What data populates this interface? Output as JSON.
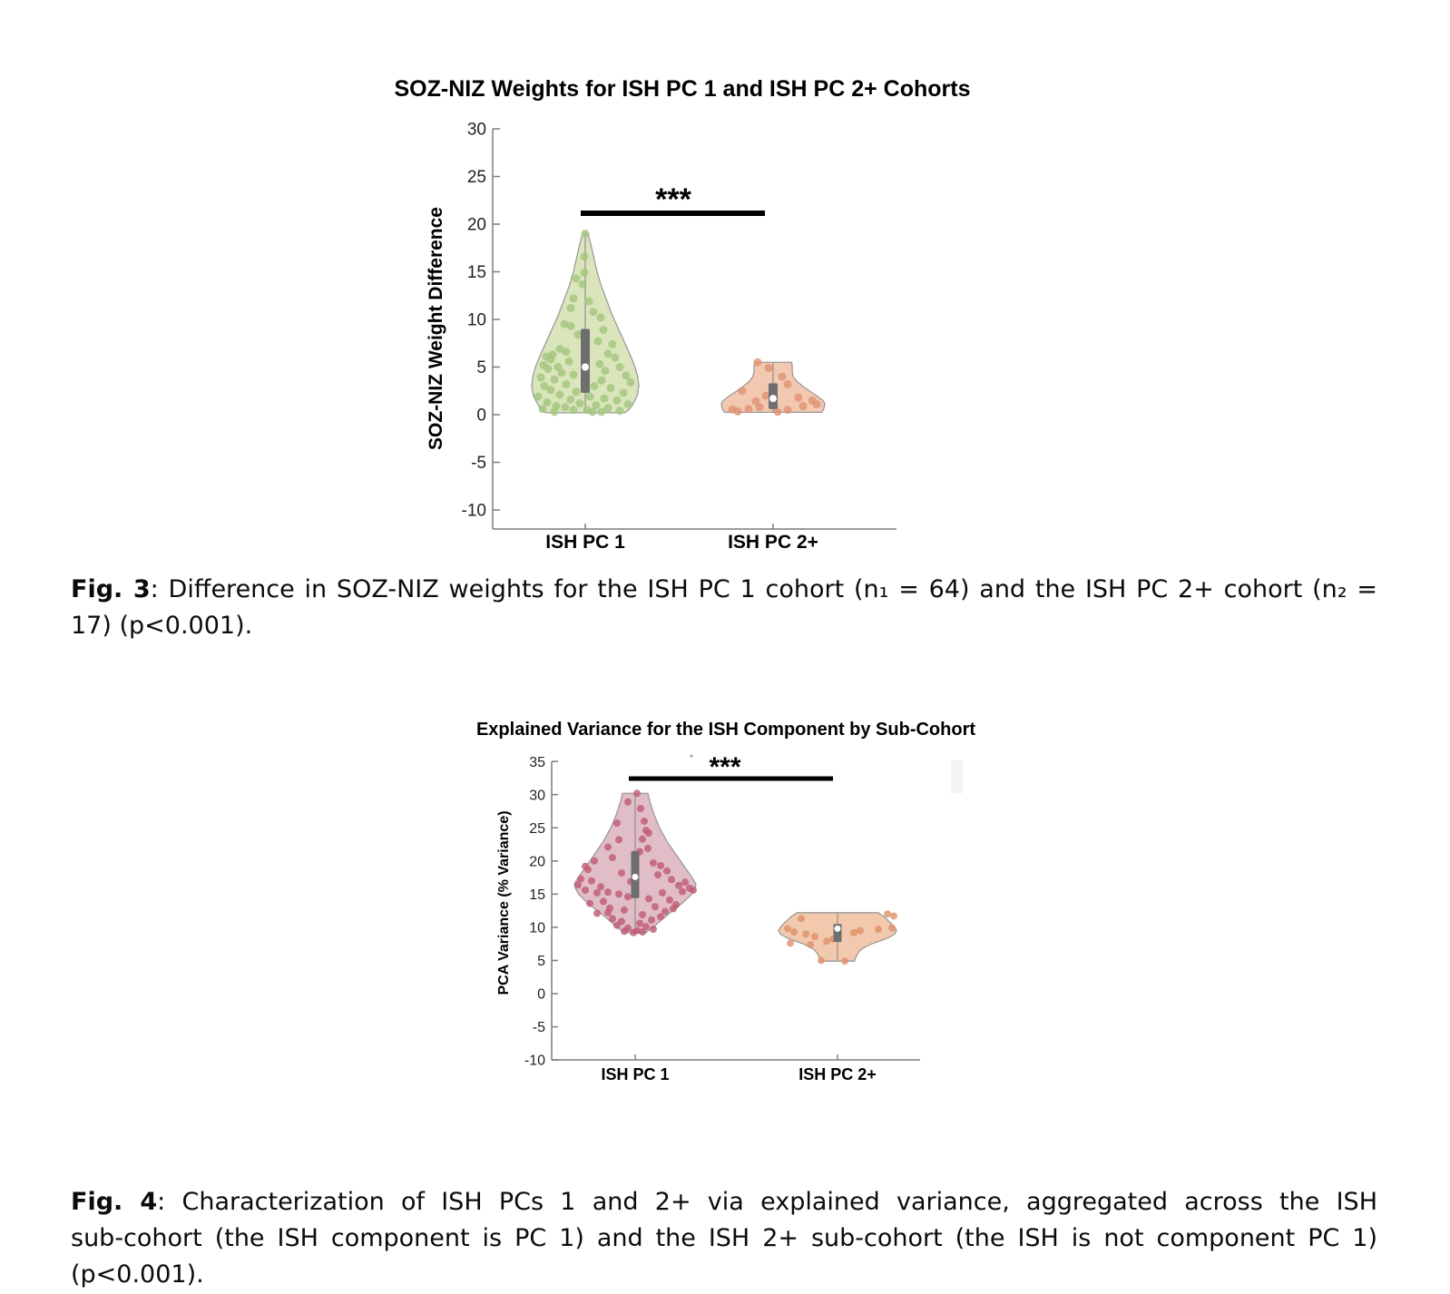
{
  "page": {
    "background": "#ffffff"
  },
  "figures": {
    "fig3": {
      "caption": {
        "prefix": "Fig. 3",
        "line1": ": Difference in SOZ-NIZ weights for the ISH PC 1 cohort (n₁ = 64) and the ISH PC 2+ cohort (n₂ =",
        "line2": "17) (p<0.001)."
      }
    },
    "fig4": {
      "caption": {
        "prefix": "Fig. 4",
        "line1": ": Characterization of ISH PCs 1 and 2+ via explained variance, aggregated across the ISH",
        "line2": "sub-cohort (the ISH component is PC 1) and the ISH 2+ sub-cohort (the ISH is not component PC 1)",
        "line3": "(p<0.001)."
      }
    }
  },
  "chart_data": [
    {
      "id": "fig3",
      "type": "violin",
      "title": "SOZ-NIZ Weights for ISH PC 1 and ISH PC 2+ Cohorts",
      "ylabel": "SOZ-NIZ Weight Difference",
      "xlabel": "",
      "ylim": [
        -12.5,
        31
      ],
      "yticks": [
        30,
        25,
        20,
        15,
        10,
        5,
        0,
        -5,
        -10
      ],
      "categories": [
        "ISH PC 1",
        "ISH PC 2+"
      ],
      "grid": false,
      "significance": {
        "label": "***",
        "between": [
          "ISH PC 1",
          "ISH PC 2+"
        ],
        "p": "p<0.001"
      },
      "series": [
        {
          "name": "ISH PC 1",
          "n": 64,
          "fill": "#dbe5bc",
          "point_color": "#a3c57c",
          "box": {
            "q1": 2.3,
            "median": 5.0,
            "q3": 9.0
          },
          "whisker": [
            0.25,
            19.0
          ],
          "profile": [
            [
              19.0,
              0.05
            ],
            [
              18.0,
              0.1
            ],
            [
              16.5,
              0.16
            ],
            [
              15.0,
              0.22
            ],
            [
              13.5,
              0.3
            ],
            [
              12.0,
              0.4
            ],
            [
              10.5,
              0.5
            ],
            [
              9.0,
              0.62
            ],
            [
              7.5,
              0.74
            ],
            [
              6.0,
              0.86
            ],
            [
              5.0,
              0.93
            ],
            [
              4.0,
              0.98
            ],
            [
              3.0,
              1.0
            ],
            [
              2.0,
              0.97
            ],
            [
              1.0,
              0.88
            ],
            [
              0.5,
              0.81
            ],
            [
              0.2,
              0.74
            ]
          ],
          "points": [
            [
              0,
              19.0
            ],
            [
              -1,
              16.6
            ],
            [
              -1,
              14.9
            ],
            [
              -10,
              14.3
            ],
            [
              -3,
              13.7
            ],
            [
              -13,
              12.2
            ],
            [
              4,
              11.9
            ],
            [
              -16,
              11.2
            ],
            [
              9,
              10.8
            ],
            [
              17,
              10.2
            ],
            [
              -23,
              9.5
            ],
            [
              -16,
              9.3
            ],
            [
              20,
              8.9
            ],
            [
              -8,
              8.4
            ],
            [
              14,
              7.7
            ],
            [
              30,
              7.4
            ],
            [
              -28,
              6.9
            ],
            [
              -21,
              6.6
            ],
            [
              -36,
              6.3
            ],
            [
              25,
              6.4
            ],
            [
              33,
              6.0
            ],
            [
              -43,
              6.1
            ],
            [
              -38,
              5.8
            ],
            [
              -18,
              5.6
            ],
            [
              -46,
              5.2
            ],
            [
              -30,
              5.0
            ],
            [
              -41,
              4.8
            ],
            [
              16,
              5.3
            ],
            [
              38,
              5.0
            ],
            [
              22,
              4.6
            ],
            [
              -26,
              4.4
            ],
            [
              -13,
              4.2
            ],
            [
              45,
              4.1
            ],
            [
              -49,
              3.9
            ],
            [
              -34,
              3.7
            ],
            [
              18,
              3.6
            ],
            [
              50,
              3.4
            ],
            [
              -21,
              3.2
            ],
            [
              -45,
              3.0
            ],
            [
              10,
              3.0
            ],
            [
              28,
              2.8
            ],
            [
              -38,
              2.6
            ],
            [
              -10,
              2.4
            ],
            [
              42,
              2.3
            ],
            [
              -28,
              2.1
            ],
            [
              -52,
              1.9
            ],
            [
              5,
              1.9
            ],
            [
              21,
              1.7
            ],
            [
              -16,
              1.6
            ],
            [
              35,
              1.5
            ],
            [
              -42,
              1.3
            ],
            [
              -6,
              1.2
            ],
            [
              47,
              1.1
            ],
            [
              12,
              1.0
            ],
            [
              -32,
              0.9
            ],
            [
              -22,
              0.8
            ],
            [
              25,
              0.7
            ],
            [
              -47,
              0.6
            ],
            [
              2,
              0.5
            ],
            [
              -13,
              0.5
            ],
            [
              38,
              0.4
            ],
            [
              18,
              0.3
            ],
            [
              -34,
              0.3
            ],
            [
              8,
              0.3
            ]
          ]
        },
        {
          "name": "ISH PC 2+",
          "n": 17,
          "fill": "#f3c8b0",
          "point_color": "#dd9372",
          "box": {
            "q1": 0.6,
            "median": 1.7,
            "q3": 3.3
          },
          "whisker": [
            0.25,
            5.5
          ],
          "profile": [
            [
              5.5,
              0.36
            ],
            [
              5.0,
              0.37
            ],
            [
              4.5,
              0.37
            ],
            [
              4.0,
              0.39
            ],
            [
              3.5,
              0.46
            ],
            [
              3.0,
              0.57
            ],
            [
              2.5,
              0.7
            ],
            [
              2.0,
              0.84
            ],
            [
              1.5,
              0.96
            ],
            [
              1.2,
              1.0
            ],
            [
              0.8,
              0.99
            ],
            [
              0.5,
              0.97
            ],
            [
              0.25,
              0.94
            ]
          ],
          "points": [
            [
              -17,
              5.5
            ],
            [
              -5,
              4.9
            ],
            [
              10,
              4.0
            ],
            [
              16,
              3.2
            ],
            [
              -34,
              2.5
            ],
            [
              -8,
              2.0
            ],
            [
              28,
              1.8
            ],
            [
              43,
              1.5
            ],
            [
              -19,
              1.4
            ],
            [
              48,
              1.1
            ],
            [
              33,
              0.9
            ],
            [
              -15,
              0.8
            ],
            [
              -27,
              0.6
            ],
            [
              -45,
              0.55
            ],
            [
              16,
              0.5
            ],
            [
              -39,
              0.35
            ],
            [
              5,
              0.3
            ]
          ]
        }
      ]
    },
    {
      "id": "fig4",
      "type": "violin",
      "title": "Explained Variance for the ISH Component by Sub-Cohort",
      "ylabel": "PCA Variance (% Variance)",
      "xlabel": "",
      "ylim": [
        -10,
        35
      ],
      "yticks": [
        35,
        30,
        25,
        20,
        15,
        10,
        5,
        0,
        -5,
        -10
      ],
      "categories": [
        "ISH PC 1",
        "ISH PC 2+"
      ],
      "grid": false,
      "significance": {
        "label": "***",
        "between": [
          "ISH PC 1",
          "ISH PC 2+"
        ],
        "p": "p<0.001"
      },
      "series": [
        {
          "name": "ISH PC 1",
          "n": 64,
          "fill": "#e0bdc7",
          "point_color": "#bf5a72",
          "box": {
            "q1": 14.4,
            "median": 17.6,
            "q3": 21.5
          },
          "whisker": [
            9.2,
            30.2
          ],
          "profile": [
            [
              30.2,
              0.21
            ],
            [
              29.0,
              0.24
            ],
            [
              27.0,
              0.31
            ],
            [
              25.0,
              0.4
            ],
            [
              23.0,
              0.52
            ],
            [
              21.0,
              0.67
            ],
            [
              19.0,
              0.82
            ],
            [
              18.0,
              0.9
            ],
            [
              17.0,
              0.97
            ],
            [
              16.5,
              1.0
            ],
            [
              16.0,
              0.99
            ],
            [
              15.0,
              0.93
            ],
            [
              14.0,
              0.82
            ],
            [
              13.0,
              0.69
            ],
            [
              12.0,
              0.55
            ],
            [
              11.0,
              0.42
            ],
            [
              10.0,
              0.3
            ],
            [
              9.5,
              0.22
            ],
            [
              9.2,
              0.18
            ]
          ],
          "points": [
            [
              2,
              30.2
            ],
            [
              -8,
              28.9
            ],
            [
              6,
              27.9
            ],
            [
              10,
              26.0
            ],
            [
              -20,
              25.7
            ],
            [
              12,
              24.6
            ],
            [
              15,
              24.2
            ],
            [
              8,
              23.3
            ],
            [
              -18,
              23.2
            ],
            [
              -30,
              22.1
            ],
            [
              14,
              21.9
            ],
            [
              5,
              21.4
            ],
            [
              -25,
              20.5
            ],
            [
              -45,
              20.0
            ],
            [
              20,
              19.7
            ],
            [
              28,
              19.3
            ],
            [
              -55,
              19.2
            ],
            [
              -52,
              18.7
            ],
            [
              35,
              18.5
            ],
            [
              -15,
              18.2
            ],
            [
              25,
              17.9
            ],
            [
              -60,
              17.3
            ],
            [
              -48,
              17.0
            ],
            [
              40,
              17.2
            ],
            [
              55,
              16.8
            ],
            [
              -63,
              16.4
            ],
            [
              -5,
              16.9
            ],
            [
              -38,
              16.1
            ],
            [
              48,
              16.3
            ],
            [
              60,
              15.9
            ],
            [
              -55,
              15.6
            ],
            [
              -30,
              15.3
            ],
            [
              -42,
              15.2
            ],
            [
              -18,
              15.0
            ],
            [
              30,
              15.2
            ],
            [
              52,
              15.4
            ],
            [
              64,
              15.6
            ],
            [
              -8,
              14.6
            ],
            [
              15,
              14.3
            ],
            [
              38,
              14.1
            ],
            [
              -35,
              13.9
            ],
            [
              -50,
              13.6
            ],
            [
              45,
              13.4
            ],
            [
              22,
              13.1
            ],
            [
              -28,
              12.9
            ],
            [
              -12,
              12.6
            ],
            [
              33,
              12.4
            ],
            [
              -42,
              12.1
            ],
            [
              42,
              12.8
            ],
            [
              -30,
              12.2
            ],
            [
              8,
              11.9
            ],
            [
              28,
              11.6
            ],
            [
              -25,
              11.3
            ],
            [
              18,
              11.1
            ],
            [
              -15,
              10.9
            ],
            [
              5,
              10.6
            ],
            [
              -20,
              10.3
            ],
            [
              12,
              10.1
            ],
            [
              -8,
              9.9
            ],
            [
              20,
              9.7
            ],
            [
              2,
              9.5
            ],
            [
              -12,
              9.4
            ],
            [
              8,
              9.3
            ],
            [
              -2,
              9.2
            ]
          ]
        },
        {
          "name": "ISH PC 2+",
          "n": 17,
          "fill": "#f2c9ad",
          "point_color": "#dd9168",
          "box": {
            "q1": 7.8,
            "median": 9.8,
            "q3": 10.5
          },
          "whisker": [
            4.9,
            12.2
          ],
          "profile": [
            [
              12.2,
              0.69
            ],
            [
              11.5,
              0.8
            ],
            [
              10.5,
              0.92
            ],
            [
              10.0,
              0.97
            ],
            [
              9.5,
              1.0
            ],
            [
              9.0,
              0.97
            ],
            [
              8.5,
              0.88
            ],
            [
              8.0,
              0.74
            ],
            [
              7.5,
              0.58
            ],
            [
              7.0,
              0.46
            ],
            [
              6.5,
              0.38
            ],
            [
              6.0,
              0.34
            ],
            [
              5.5,
              0.31
            ],
            [
              4.9,
              0.29
            ]
          ],
          "points": [
            [
              -40,
              11.3
            ],
            [
              -55,
              9.8
            ],
            [
              -48,
              9.3
            ],
            [
              -35,
              9.0
            ],
            [
              -25,
              8.6
            ],
            [
              -52,
              7.6
            ],
            [
              -30,
              7.4
            ],
            [
              -12,
              7.9
            ],
            [
              55,
              12.0
            ],
            [
              62,
              11.7
            ],
            [
              25,
              9.5
            ],
            [
              45,
              9.7
            ],
            [
              60,
              9.9
            ],
            [
              -18,
              5.0
            ],
            [
              8,
              4.9
            ],
            [
              -5,
              8.2
            ],
            [
              18,
              9.2
            ]
          ]
        }
      ]
    }
  ]
}
